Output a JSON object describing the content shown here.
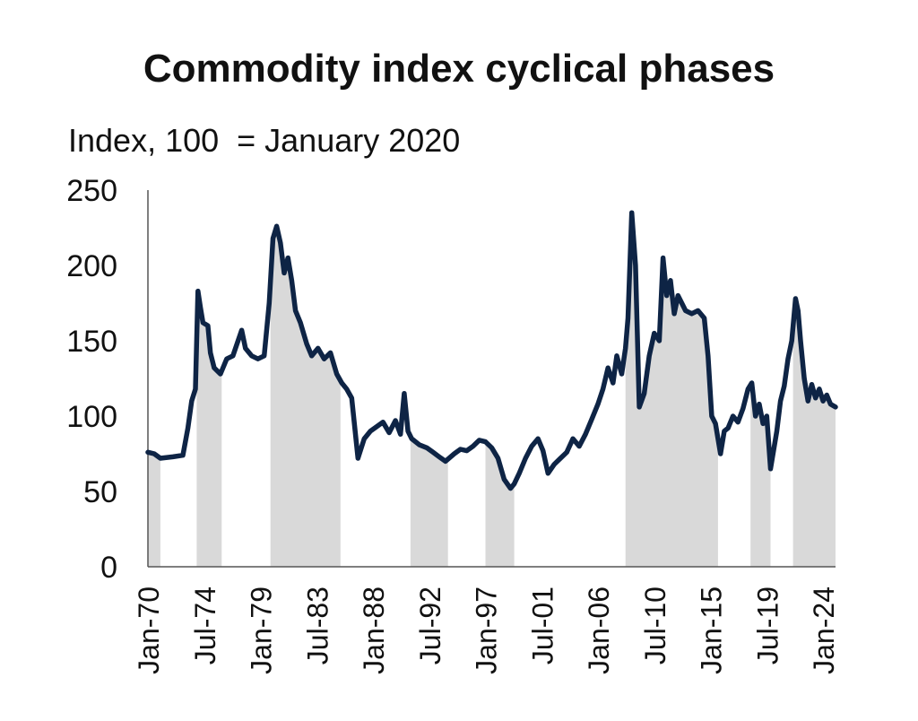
{
  "chart_data": {
    "type": "line",
    "title": "Commodity index cyclical phases",
    "subtitle": "Index, 100  = January 2020",
    "xlabel": "",
    "ylabel": "",
    "ylim": [
      0,
      250
    ],
    "xlim": [
      1970.0,
      2025.0
    ],
    "y_ticks": [
      0,
      50,
      100,
      150,
      200,
      250
    ],
    "x_tick_labels": [
      "Jan-70",
      "Jul-74",
      "Jan-79",
      "Jul-83",
      "Jan-88",
      "Jul-92",
      "Jan-97",
      "Jul-01",
      "Jan-06",
      "Jul-10",
      "Jan-15",
      "Jul-19",
      "Jan-24"
    ],
    "x_tick_values": [
      1970.0,
      1974.5,
      1979.0,
      1983.5,
      1988.0,
      1992.5,
      1997.0,
      2001.5,
      2006.0,
      2010.5,
      2015.0,
      2019.5,
      2024.0
    ],
    "grid": false,
    "colors": {
      "line": "#0e2445",
      "shade": "#d9d9d9",
      "axis": "#555555"
    },
    "shaded_periods": [
      [
        1970.0,
        1971.0
      ],
      [
        1973.9,
        1975.9
      ],
      [
        1979.8,
        1985.4
      ],
      [
        1991.0,
        1994.0
      ],
      [
        1997.0,
        1999.3
      ],
      [
        2008.2,
        2015.6
      ],
      [
        2018.2,
        2019.8
      ],
      [
        2021.6,
        2025.0
      ]
    ],
    "series": [
      {
        "x": [
          1970.0,
          1970.5,
          1971.0,
          1972.0,
          1972.8,
          1973.2,
          1973.5,
          1973.8,
          1974.0,
          1974.2,
          1974.4,
          1974.8,
          1975.0,
          1975.3,
          1975.8,
          1976.3,
          1976.8,
          1977.5,
          1977.8,
          1978.3,
          1978.8,
          1979.3,
          1979.7,
          1980.0,
          1980.3,
          1980.6,
          1980.9,
          1981.2,
          1981.5,
          1981.8,
          1982.2,
          1982.7,
          1983.1,
          1983.6,
          1984.1,
          1984.6,
          1985.1,
          1985.5,
          1985.9,
          1986.3,
          1986.8,
          1987.3,
          1987.8,
          1988.3,
          1988.8,
          1989.3,
          1989.8,
          1990.2,
          1990.5,
          1990.8,
          1991.1,
          1991.7,
          1992.3,
          1992.8,
          1993.3,
          1993.8,
          1994.5,
          1995.0,
          1995.5,
          1996.0,
          1996.5,
          1997.0,
          1997.5,
          1998.0,
          1998.5,
          1999.0,
          1999.3,
          1999.7,
          2000.2,
          2000.7,
          2001.2,
          2001.6,
          2002.0,
          2002.5,
          2003.0,
          2003.5,
          2004.0,
          2004.5,
          2005.0,
          2005.5,
          2006.0,
          2006.4,
          2006.8,
          2007.2,
          2007.5,
          2007.9,
          2008.2,
          2008.4,
          2008.7,
          2009.0,
          2009.3,
          2009.7,
          2010.1,
          2010.5,
          2010.9,
          2011.2,
          2011.5,
          2011.8,
          2012.1,
          2012.4,
          2012.7,
          2013.0,
          2013.5,
          2014.0,
          2014.5,
          2014.8,
          2015.1,
          2015.4,
          2015.8,
          2016.1,
          2016.4,
          2016.8,
          2017.2,
          2017.6,
          2018.0,
          2018.3,
          2018.6,
          2018.9,
          2019.2,
          2019.5,
          2019.8,
          2020.0,
          2020.3,
          2020.6,
          2020.9,
          2021.2,
          2021.5,
          2021.8,
          2022.0,
          2022.2,
          2022.5,
          2022.8,
          2023.1,
          2023.4,
          2023.7,
          2024.0,
          2024.3,
          2024.6,
          2025.0
        ],
        "values": [
          76,
          75,
          72,
          73,
          74,
          92,
          110,
          118,
          183,
          172,
          162,
          160,
          142,
          132,
          128,
          138,
          140,
          157,
          145,
          140,
          138,
          140,
          175,
          218,
          226,
          215,
          195,
          205,
          190,
          170,
          162,
          148,
          140,
          145,
          138,
          142,
          128,
          122,
          118,
          112,
          72,
          85,
          90,
          93,
          96,
          89,
          97,
          88,
          115,
          90,
          85,
          81,
          79,
          76,
          73,
          70,
          75,
          78,
          77,
          80,
          84,
          83,
          79,
          72,
          58,
          52,
          55,
          62,
          72,
          80,
          85,
          77,
          62,
          68,
          72,
          76,
          85,
          80,
          88,
          98,
          108,
          118,
          132,
          122,
          140,
          128,
          145,
          165,
          235,
          200,
          106,
          115,
          140,
          155,
          150,
          205,
          180,
          190,
          168,
          180,
          175,
          170,
          168,
          170,
          165,
          140,
          100,
          95,
          75,
          90,
          92,
          100,
          96,
          105,
          118,
          122,
          100,
          108,
          95,
          100,
          65,
          75,
          90,
          110,
          120,
          138,
          150,
          178,
          170,
          150,
          125,
          110,
          121,
          112,
          118,
          110,
          114,
          108,
          106
        ]
      }
    ]
  }
}
